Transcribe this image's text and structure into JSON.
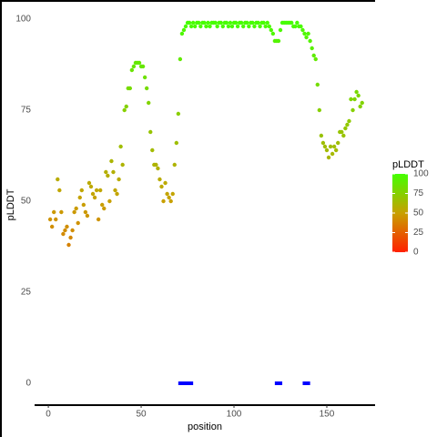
{
  "chart_data": {
    "type": "scatter",
    "x_label": "position",
    "y_label": "pLDDT",
    "xlim": [
      -7.4,
      176
    ],
    "ylim": [
      -6,
      105
    ],
    "xticks": [
      0,
      50,
      100,
      150
    ],
    "yticks": [
      0,
      25,
      50,
      75,
      100
    ],
    "x": [
      1,
      2,
      3,
      4,
      5,
      6,
      7,
      8,
      9,
      10,
      11,
      12,
      13,
      14,
      15,
      16,
      17,
      18,
      19,
      20,
      21,
      22,
      23,
      24,
      25,
      26,
      27,
      28,
      29,
      30,
      31,
      32,
      33,
      34,
      35,
      36,
      37,
      38,
      39,
      40,
      41,
      42,
      43,
      44,
      45,
      46,
      47,
      48,
      49,
      50,
      51,
      52,
      53,
      54,
      55,
      56,
      57,
      58,
      59,
      60,
      61,
      62,
      63,
      64,
      65,
      66,
      67,
      68,
      69,
      70,
      71,
      72,
      73,
      74,
      75,
      76,
      77,
      78,
      79,
      80,
      81,
      82,
      83,
      84,
      85,
      86,
      87,
      88,
      89,
      90,
      91,
      92,
      93,
      94,
      95,
      96,
      97,
      98,
      99,
      100,
      101,
      102,
      103,
      104,
      105,
      106,
      107,
      108,
      109,
      110,
      111,
      112,
      113,
      114,
      115,
      116,
      117,
      118,
      119,
      120,
      121,
      122,
      123,
      124,
      125,
      126,
      127,
      128,
      129,
      130,
      131,
      132,
      133,
      134,
      135,
      136,
      137,
      138,
      139,
      140,
      141,
      142,
      143,
      144,
      145,
      146,
      147,
      148,
      149,
      150,
      151,
      152,
      153,
      154,
      155,
      156,
      157,
      158,
      159,
      160,
      161,
      162,
      163,
      164,
      165,
      166,
      167,
      168,
      169
    ],
    "values": [
      45,
      43,
      47,
      45,
      56,
      53,
      47,
      41,
      42,
      43,
      38,
      40,
      42,
      47,
      48,
      44,
      51,
      53,
      49,
      47,
      46,
      55,
      54,
      52,
      51,
      53,
      45,
      53,
      49,
      48,
      58,
      57,
      50,
      61,
      58,
      53,
      52,
      56,
      65,
      60,
      75,
      76,
      81,
      81,
      86,
      87,
      88,
      88,
      88,
      87,
      87,
      84,
      81,
      77,
      69,
      64,
      60,
      60,
      59,
      56,
      54,
      50,
      55,
      52,
      51,
      50,
      52,
      60,
      66,
      74,
      89,
      96,
      97,
      98,
      99,
      99,
      98,
      99,
      98,
      99,
      99,
      98,
      99,
      99,
      98,
      99,
      98,
      99,
      99,
      99,
      98,
      99,
      99,
      98,
      99,
      99,
      98,
      99,
      98,
      99,
      99,
      98,
      99,
      99,
      98,
      99,
      99,
      98,
      99,
      99,
      98,
      99,
      99,
      98,
      99,
      99,
      98,
      99,
      98,
      97,
      96,
      94,
      94,
      94,
      97,
      99,
      99,
      99,
      99,
      99,
      99,
      98,
      98,
      99,
      98,
      98,
      97,
      96,
      95,
      96,
      94,
      92,
      90,
      89,
      82,
      75,
      68,
      66,
      65,
      64,
      62,
      65,
      63,
      65,
      64,
      66,
      69,
      69,
      68,
      70,
      71,
      72,
      78,
      75,
      78,
      80,
      79,
      76,
      77
    ],
    "segments": [
      {
        "start": 70,
        "end": 78,
        "value": 0
      },
      {
        "start": 122,
        "end": 126,
        "value": 0
      },
      {
        "start": 137,
        "end": 141,
        "value": 0
      }
    ],
    "segment_color": "#0000ff",
    "color_scale": {
      "title": "pLDDT",
      "stops": [
        0,
        50,
        100
      ],
      "colors": [
        "#ff2000",
        "#c8a000",
        "#44ff00"
      ],
      "ticks": [
        0,
        25,
        50,
        75,
        100
      ]
    }
  }
}
